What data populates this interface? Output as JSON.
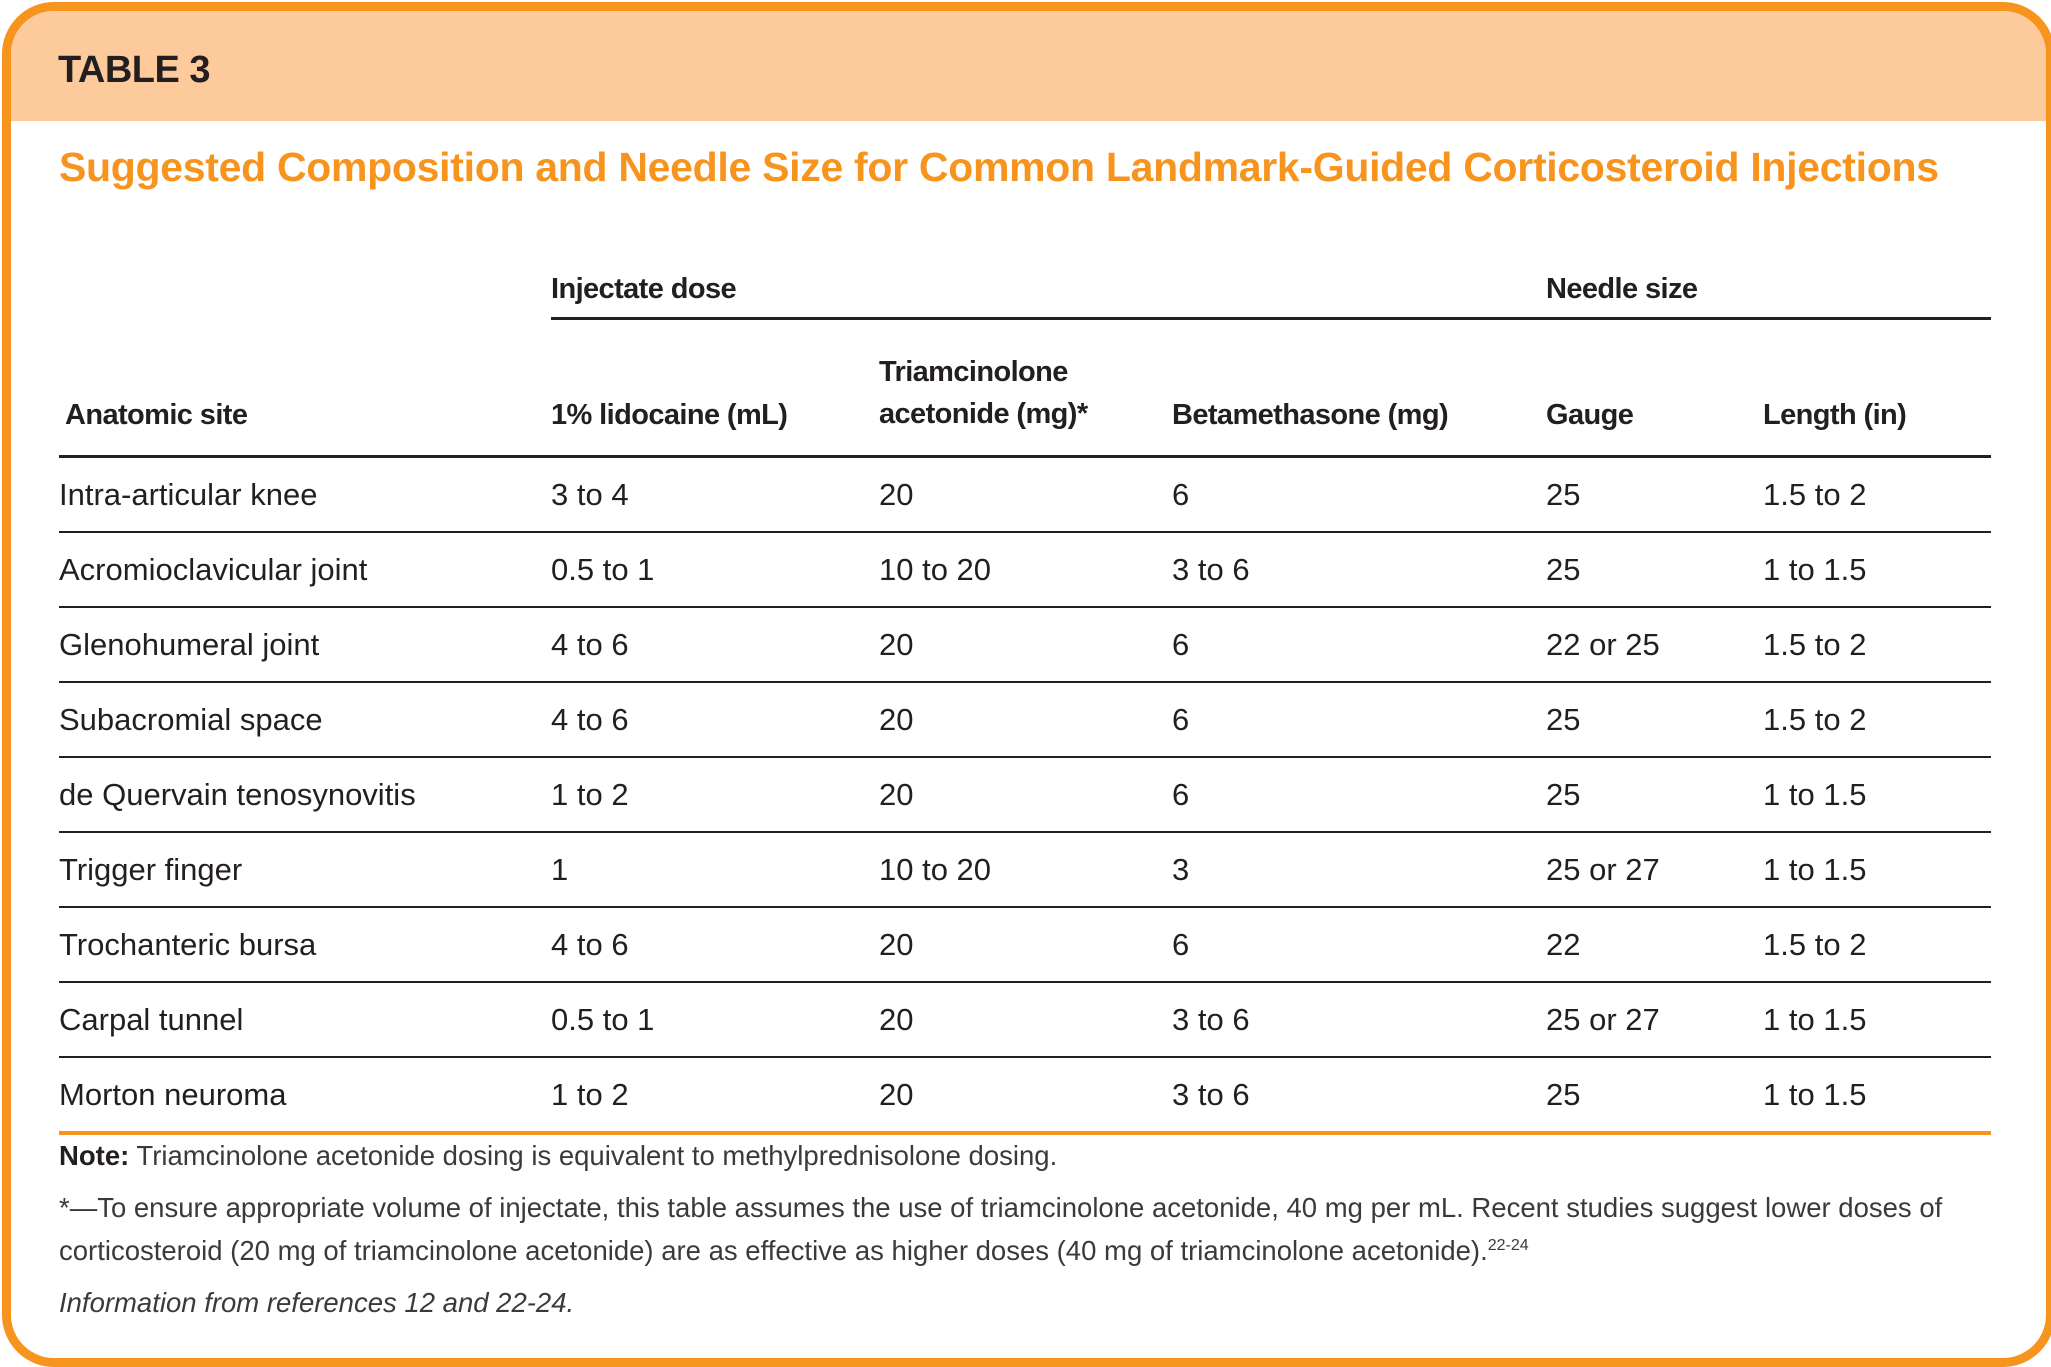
{
  "table_label": "TABLE 3",
  "title": "Suggested Composition and Needle Size for Common Landmark-Guided Corticosteroid Injections",
  "group_headers": {
    "injectate": "Injectate dose",
    "needle": "Needle size"
  },
  "columns": [
    "Anatomic site",
    "1% lidocaine (mL)",
    "Triamcinolone acetonide (mg)*",
    "Betamethasone (mg)",
    "Gauge",
    "Length (in)"
  ],
  "rows": [
    [
      "Intra-articular knee",
      "3 to 4",
      "20",
      "6",
      "25",
      "1.5 to 2"
    ],
    [
      "Acromioclavicular joint",
      "0.5 to 1",
      "10 to 20",
      "3 to 6",
      "25",
      "1 to 1.5"
    ],
    [
      "Glenohumeral joint",
      "4 to 6",
      "20",
      "6",
      "22 or 25",
      "1.5 to 2"
    ],
    [
      "Subacromial space",
      "4 to 6",
      "20",
      "6",
      "25",
      "1.5 to 2"
    ],
    [
      "de Quervain tenosynovitis",
      "1 to 2",
      "20",
      "6",
      "25",
      "1 to 1.5"
    ],
    [
      "Trigger finger",
      "1",
      "10 to 20",
      "3",
      "25 or 27",
      "1 to 1.5"
    ],
    [
      "Trochanteric bursa",
      "4 to 6",
      "20",
      "6",
      "22",
      "1.5 to 2"
    ],
    [
      "Carpal tunnel",
      "0.5 to 1",
      "20",
      "3 to 6",
      "25 or 27",
      "1 to 1.5"
    ],
    [
      "Morton neuroma",
      "1 to 2",
      "20",
      "3 to 6",
      "25",
      "1 to 1.5"
    ]
  ],
  "notes": {
    "note_label": "Note:",
    "note_text": " Triamcinolone acetonide dosing is equivalent to methylprednisolone dosing.",
    "footnote": "*—To ensure appropriate volume of injectate, this table assumes the use of triamcinolone acetonide, 40 mg per mL. Recent studies suggest lower doses of corticosteroid (20 mg of triamcinolone acetonide) are as effective as higher doses (40 mg of triamcinolone acetonide).",
    "footnote_refs": "22-24",
    "source": "Information from references 12 and 22-24."
  },
  "colors": {
    "accent": "#f7941d",
    "header_band": "#fdcb9b",
    "text": "#231f20"
  }
}
